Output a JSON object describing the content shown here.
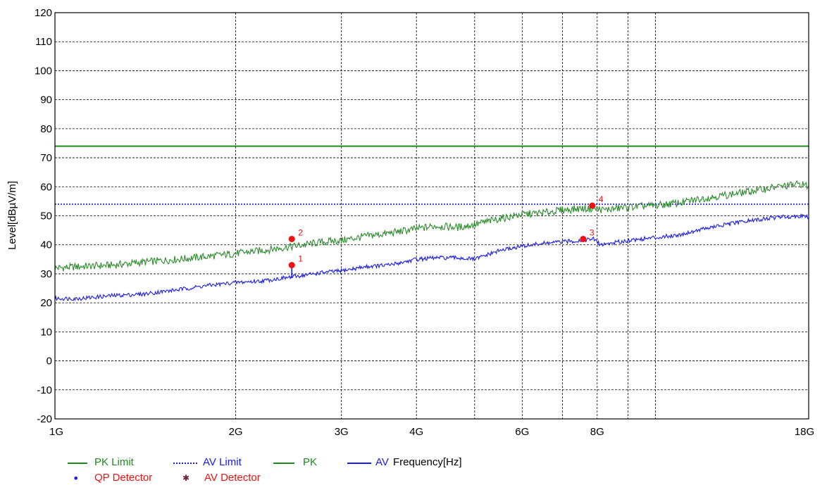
{
  "chart_data": {
    "type": "line",
    "ylabel": "Level[dBµV/m]",
    "x_unit_label": "Frequency[Hz]",
    "x_scale": "log",
    "xlim": [
      1000000000,
      18000000000
    ],
    "ylim": [
      -20,
      120
    ],
    "y_ticks": [
      120,
      110,
      100,
      90,
      80,
      70,
      60,
      50,
      40,
      30,
      20,
      10,
      0,
      -10,
      -20
    ],
    "x_ticks": [
      {
        "value": 1000000000,
        "label": "1G"
      },
      {
        "value": 2000000000,
        "label": "2G"
      },
      {
        "value": 3000000000,
        "label": "3G"
      },
      {
        "value": 4000000000,
        "label": "4G"
      },
      {
        "value": 6000000000,
        "label": "6G"
      },
      {
        "value": 8000000000,
        "label": "8G"
      },
      {
        "value": 18000000000,
        "label": "18G"
      }
    ],
    "x_gridlines": [
      2000000000,
      3000000000,
      4000000000,
      5000000000,
      6000000000,
      7000000000,
      8000000000,
      9000000000,
      10000000000
    ],
    "grid": true,
    "limits": [
      {
        "name": "PK Limit",
        "value": 74,
        "color": "#1e8a1e",
        "style": "solid"
      },
      {
        "name": "AV Limit",
        "value": 54,
        "color": "#1a1aee",
        "style": "dotted"
      }
    ],
    "series": [
      {
        "name": "PK",
        "color": "#2e8b2e",
        "x": [
          1000000000.0,
          1100000000.0,
          1250000000.0,
          1400000000.0,
          1600000000.0,
          1800000000.0,
          2000000000.0,
          2200000000.0,
          2500000000.0,
          2800000000.0,
          3000000000.0,
          3300000000.0,
          3600000000.0,
          4000000000.0,
          4300000000.0,
          4700000000.0,
          5000000000.0,
          5500000000.0,
          6000000000.0,
          6500000000.0,
          7000000000.0,
          7500000000.0,
          7900000000.0,
          8200000000.0,
          9000000000.0,
          10000000000.0,
          11000000000.0,
          12000000000.0,
          14000000000.0,
          16000000000.0,
          17500000000.0,
          18000000000.0
        ],
        "values": [
          32,
          32.5,
          33,
          34,
          35,
          36,
          37,
          38,
          39.5,
          41,
          41.5,
          43,
          44,
          45.5,
          46.5,
          46,
          47,
          49,
          50.5,
          51,
          52,
          52.5,
          52.5,
          52,
          53,
          53.5,
          54.5,
          56,
          58,
          60,
          61,
          60
        ]
      },
      {
        "name": "AV",
        "color": "#1a1aee",
        "x": [
          1000000000.0,
          1100000000.0,
          1250000000.0,
          1400000000.0,
          1600000000.0,
          1800000000.0,
          2000000000.0,
          2200000000.0,
          2500000000.0,
          2800000000.0,
          3000000000.0,
          3300000000.0,
          3600000000.0,
          4000000000.0,
          4300000000.0,
          4700000000.0,
          5000000000.0,
          5500000000.0,
          6000000000.0,
          6500000000.0,
          7000000000.0,
          7500000000.0,
          7900000000.0,
          8100000000.0,
          9000000000.0,
          10000000000.0,
          11000000000.0,
          12000000000.0,
          14000000000.0,
          16000000000.0,
          17500000000.0,
          18000000000.0
        ],
        "values": [
          21.5,
          21.5,
          22.5,
          23,
          24.5,
          26,
          27,
          27.5,
          29,
          30.5,
          31,
          32.5,
          33,
          35,
          35.5,
          35.5,
          35,
          38,
          39.5,
          40.5,
          41,
          41.5,
          42,
          40,
          41.5,
          42.5,
          43.5,
          45.5,
          48,
          49.5,
          50,
          49.5
        ]
      }
    ],
    "markers": [
      {
        "label": "1",
        "x": 2480000000,
        "y": 33,
        "detector": "QP Detector"
      },
      {
        "label": "2",
        "x": 2480000000,
        "y": 42,
        "detector": "QP Detector"
      },
      {
        "label": "3",
        "x": 7580000000,
        "y": 42,
        "detector": "QP Detector"
      },
      {
        "label": "4",
        "x": 7850000000,
        "y": 53.5,
        "detector": "QP Detector"
      }
    ],
    "spikes": [
      {
        "x": 2480000000,
        "from": 28.5,
        "to": 33
      }
    ],
    "legend": {
      "placement": "bottom-left",
      "lines": [
        {
          "label": "PK Limit",
          "color": "#1e8a1e",
          "style": "solid"
        },
        {
          "label": "AV Limit",
          "color": "#1a1aee",
          "style": "dotted"
        },
        {
          "label": "PK",
          "color": "#1e8a1e",
          "style": "solid"
        },
        {
          "label": "AV",
          "color": "#1a1aee",
          "style": "solid"
        }
      ],
      "detectors": [
        {
          "label": "QP Detector",
          "symbol": "•",
          "symbol_color": "#1a1aee",
          "text_color": "#ee1111"
        },
        {
          "label": "AV Detector",
          "symbol": "✱",
          "symbol_color": "#7a1a3a",
          "text_color": "#ee1111"
        }
      ]
    }
  }
}
